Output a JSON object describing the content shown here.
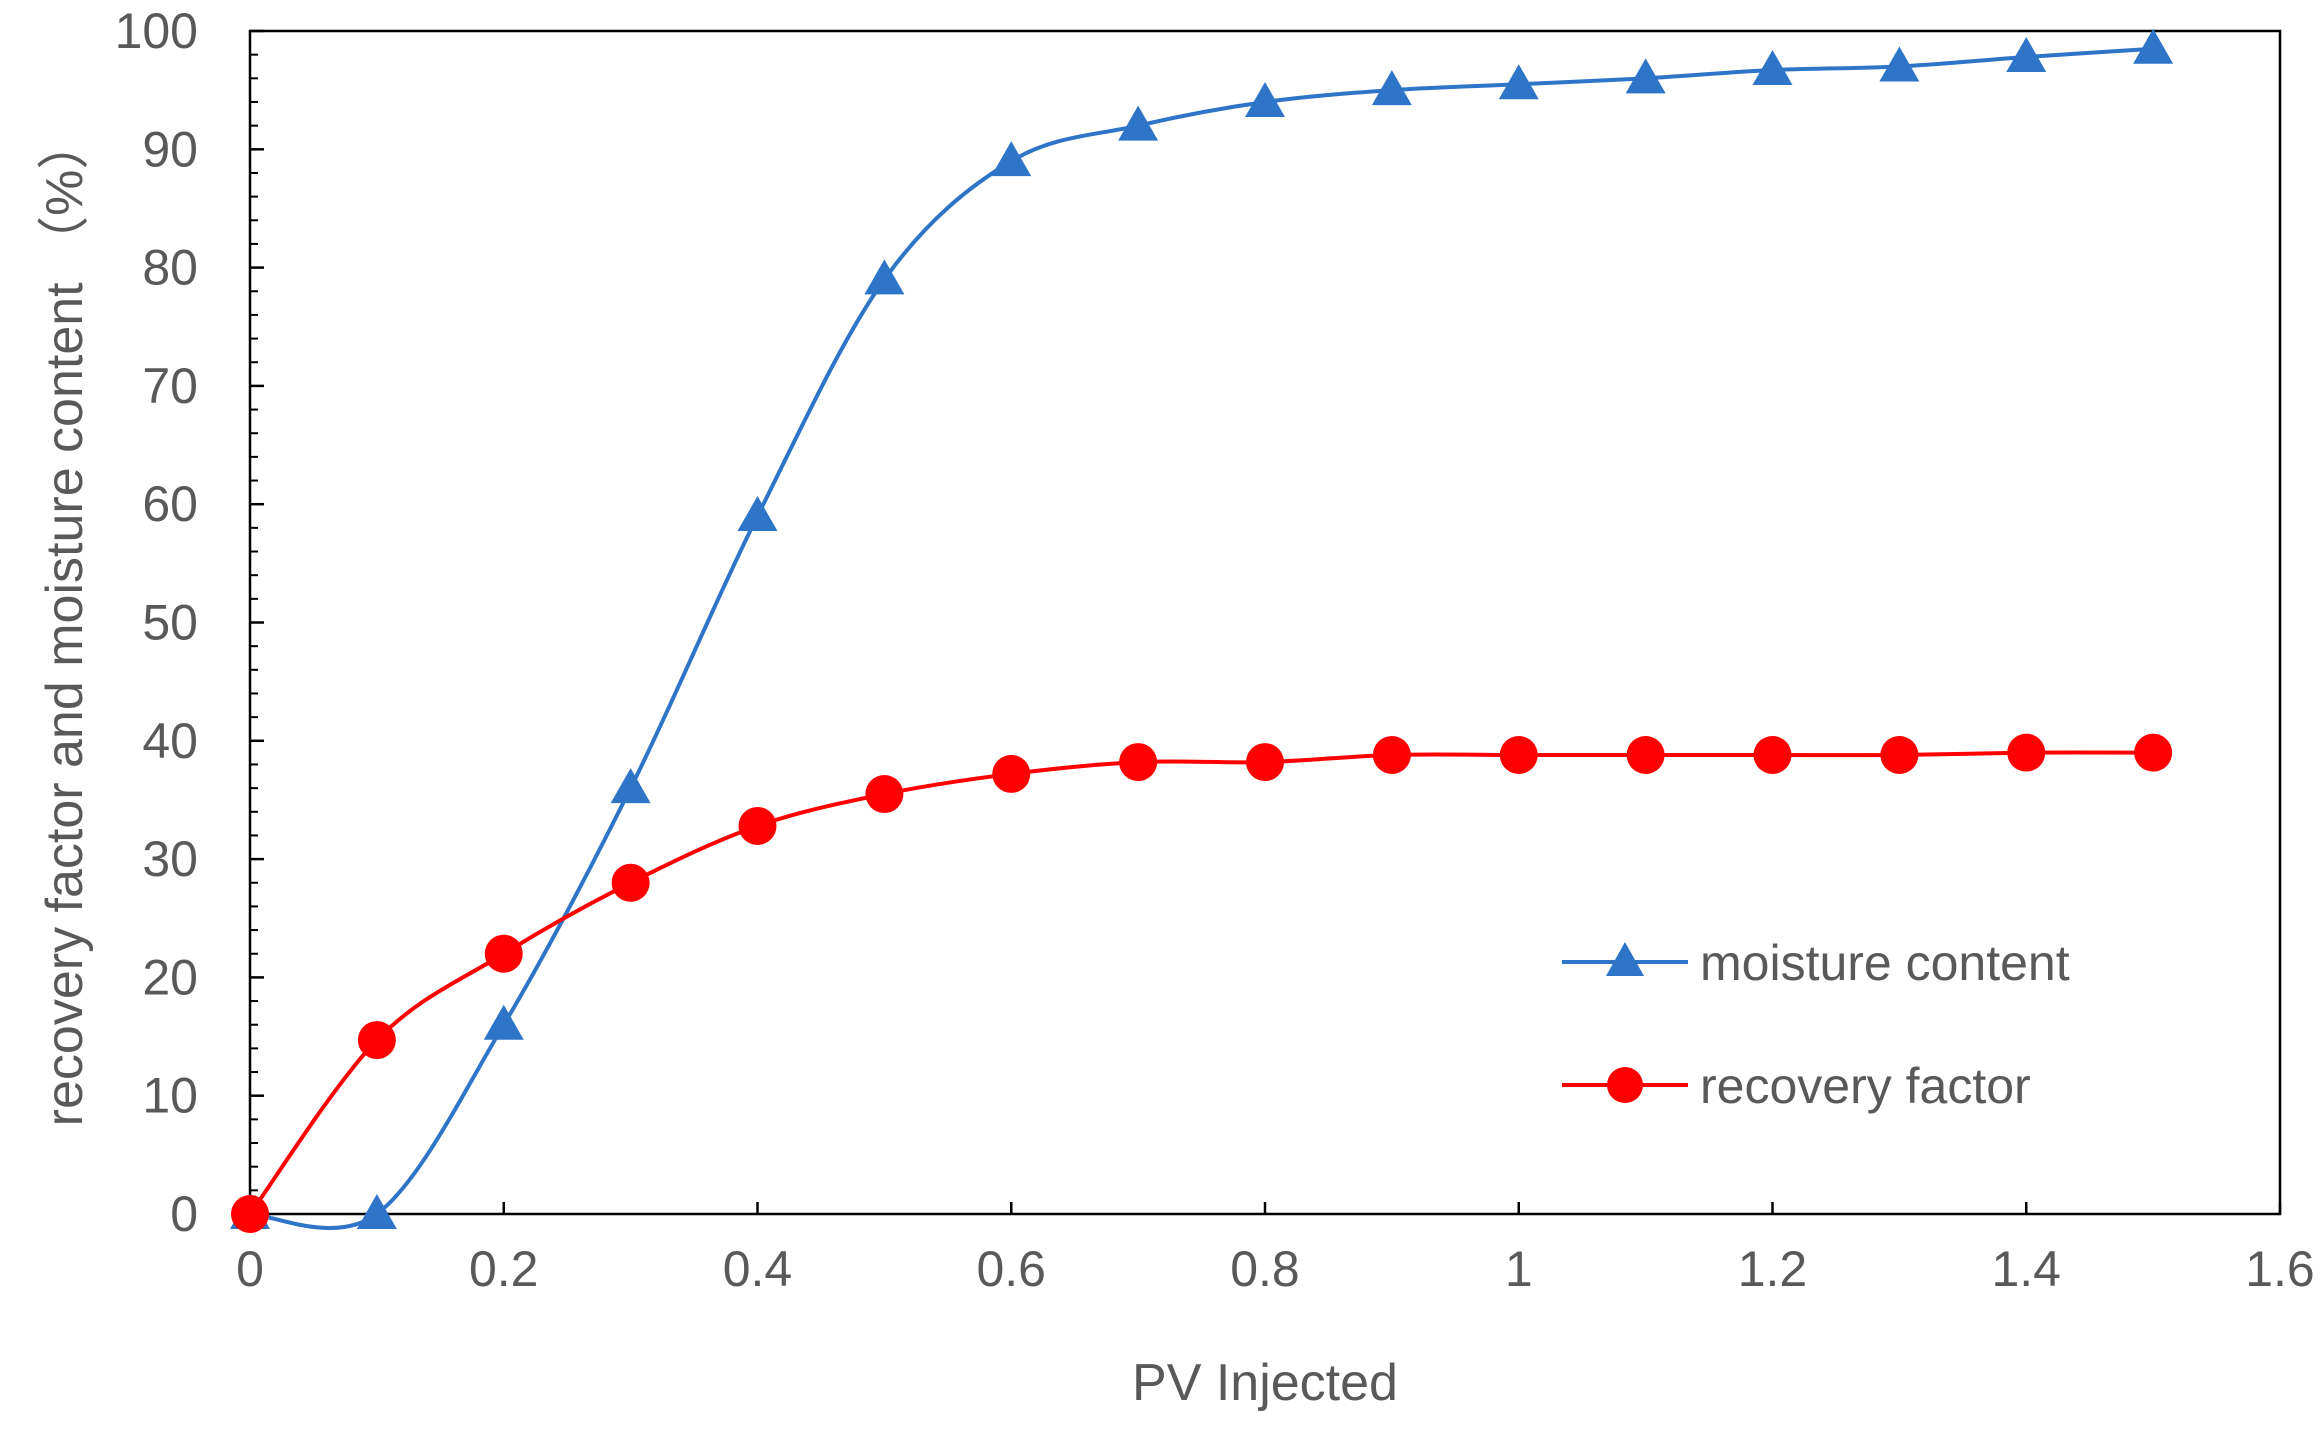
{
  "chart_data": {
    "type": "line",
    "title": "",
    "xlabel": "PV Injected",
    "ylabel": "recovery factor and moisture content （%）",
    "xlim": [
      0,
      1.6
    ],
    "ylim": [
      0,
      100
    ],
    "xticks": [
      0,
      0.2,
      0.4,
      0.6,
      0.8,
      1,
      1.2,
      1.4,
      1.6
    ],
    "xtick_labels": [
      "0",
      "0.2",
      "0.4",
      "0.6",
      "0.8",
      "1",
      "1.2",
      "1.4",
      "1.6"
    ],
    "yticks": [
      0,
      10,
      20,
      30,
      40,
      50,
      60,
      70,
      80,
      90,
      100
    ],
    "ytick_labels": [
      "0",
      "10",
      "20",
      "30",
      "40",
      "50",
      "60",
      "70",
      "80",
      "90",
      "100"
    ],
    "grid": false,
    "legend_position": "center-right",
    "series": [
      {
        "name": "moisture content",
        "color": "#2E75C8",
        "marker": "triangle",
        "x": [
          0,
          0.1,
          0.2,
          0.3,
          0.4,
          0.5,
          0.6,
          0.7,
          0.8,
          0.9,
          1.0,
          1.1,
          1.2,
          1.3,
          1.4,
          1.5
        ],
        "y": [
          0,
          0,
          16,
          36,
          59,
          79,
          89,
          92,
          94,
          95,
          95.5,
          96,
          96.7,
          97,
          97.8,
          98.5
        ]
      },
      {
        "name": "recovery factor",
        "color": "#FF0000",
        "marker": "circle",
        "x": [
          0,
          0.1,
          0.2,
          0.3,
          0.4,
          0.5,
          0.6,
          0.7,
          0.8,
          0.9,
          1.0,
          1.1,
          1.2,
          1.3,
          1.4,
          1.5
        ],
        "y": [
          0,
          14.7,
          22,
          28,
          32.8,
          35.5,
          37.2,
          38.2,
          38.2,
          38.8,
          38.8,
          38.8,
          38.8,
          38.8,
          39,
          39
        ]
      }
    ]
  }
}
